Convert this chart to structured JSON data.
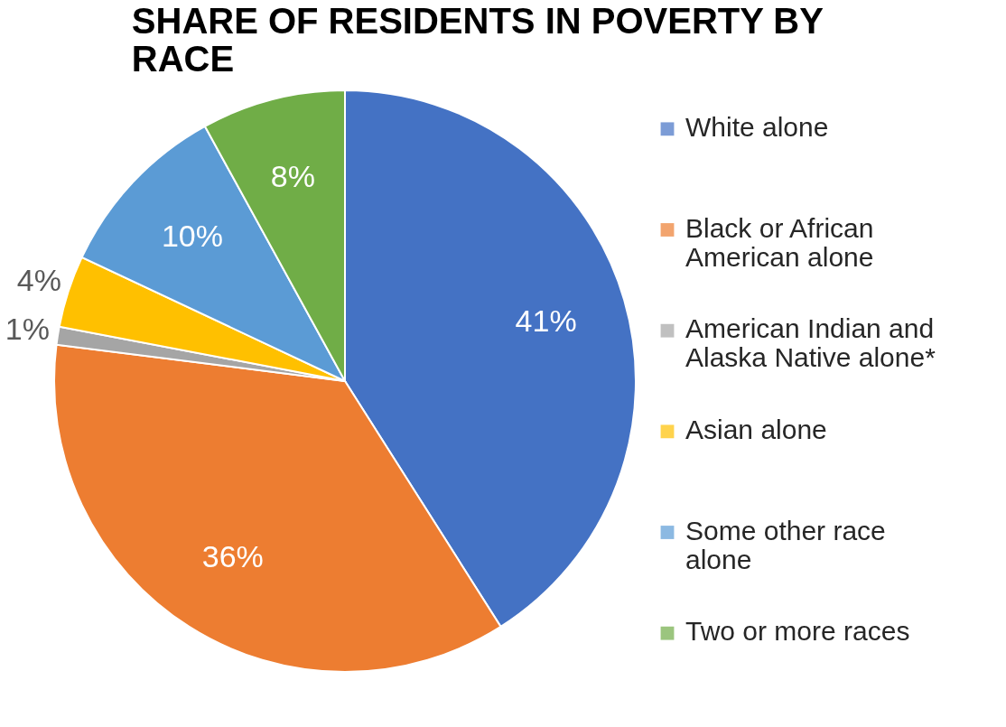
{
  "chart_data": {
    "type": "pie",
    "title": "SHARE OF RESIDENTS IN POVERTY BY RACE",
    "categories": [
      "White alone",
      "Black or African American alone",
      "American Indian and Alaska Native alone*",
      "Asian alone",
      "Some other race alone",
      "Two or more races"
    ],
    "values": [
      41,
      36,
      1,
      4,
      10,
      8
    ],
    "colors": [
      "#4472c4",
      "#ed7d31",
      "#a5a5a5",
      "#ffc000",
      "#5b9bd5",
      "#70ad47"
    ],
    "value_labels": [
      "41%",
      "36%",
      "1%",
      "4%",
      "10%",
      "8%"
    ],
    "legend": "right"
  }
}
